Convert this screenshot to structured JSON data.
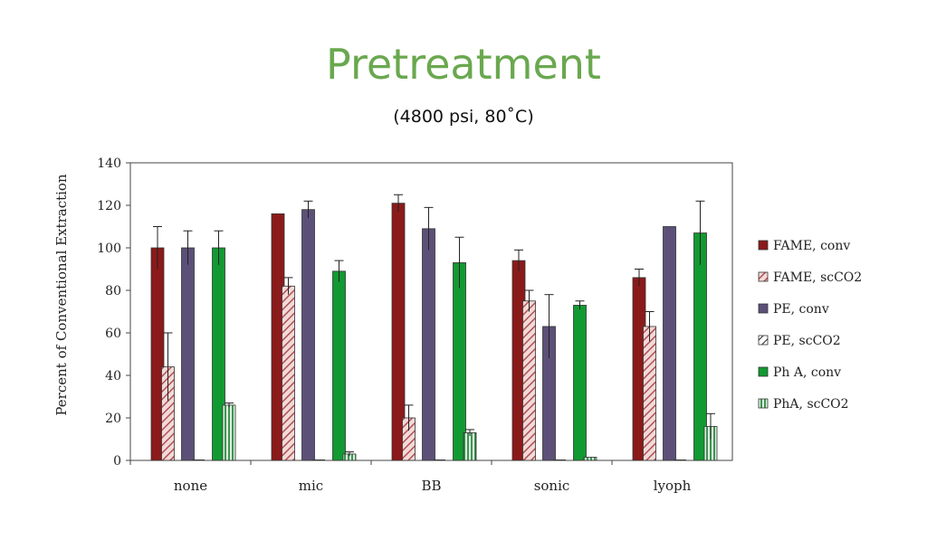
{
  "slide": {
    "title": "Pretreatment",
    "subtitle": "(4800 psi, 80˚C)"
  },
  "chart_data": {
    "type": "bar",
    "title": "",
    "xlabel": "",
    "ylabel": "Percent of Conventional Extraction",
    "ylim": [
      0,
      140
    ],
    "yticks": [
      0,
      20,
      40,
      60,
      80,
      100,
      120,
      140
    ],
    "grid": false,
    "legend": "right",
    "categories": [
      "none",
      "mic",
      "BB",
      "sonic",
      "lyoph"
    ],
    "series": [
      {
        "name": "FAME, conv",
        "pattern": "solid",
        "color": "#8b1a1a",
        "values": [
          100,
          116,
          121,
          94,
          86
        ],
        "errors": [
          10,
          0,
          4,
          5,
          4
        ]
      },
      {
        "name": "FAME, scCO2",
        "pattern": "hatch",
        "color": "#b05050",
        "values": [
          44,
          82,
          20,
          75,
          63
        ],
        "errors": [
          16,
          4,
          6,
          5,
          7
        ]
      },
      {
        "name": "PE, conv",
        "pattern": "solid",
        "color": "#5c5078",
        "values": [
          100,
          118,
          109,
          63,
          110
        ],
        "errors": [
          8,
          4,
          10,
          15,
          0
        ]
      },
      {
        "name": "PE, scCO2",
        "pattern": "hatch",
        "color": "#222222",
        "values": [
          0,
          0,
          0,
          0,
          0
        ],
        "errors": [
          0,
          0,
          0,
          0,
          0
        ]
      },
      {
        "name": "Ph A, conv",
        "pattern": "solid",
        "color": "#129a32",
        "values": [
          100,
          89,
          93,
          73,
          107
        ],
        "errors": [
          8,
          5,
          12,
          2,
          15
        ]
      },
      {
        "name": "PhA, scCO2",
        "pattern": "vlines",
        "color": "#1e7a34",
        "values": [
          26,
          3,
          13,
          1.5,
          16
        ],
        "errors": [
          1,
          1,
          1.5,
          0,
          6
        ]
      }
    ]
  }
}
